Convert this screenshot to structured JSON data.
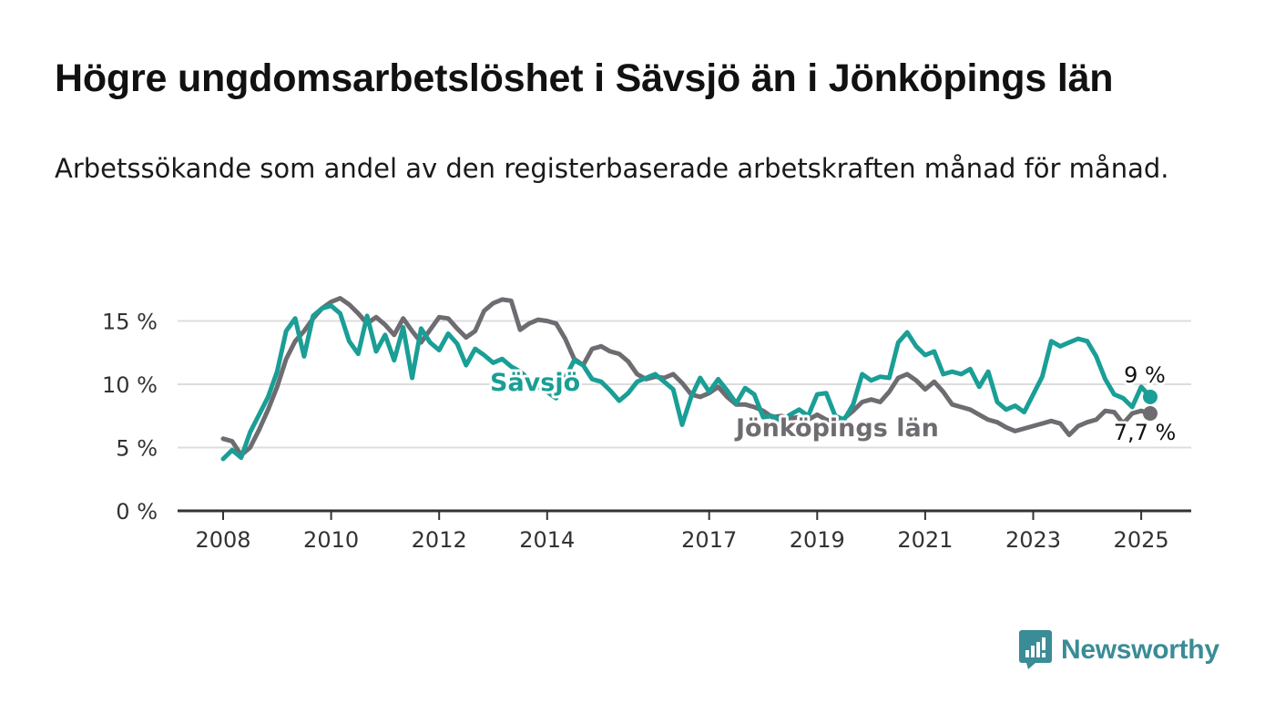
{
  "title": "Högre ungdomsarbetslöshet i Sävsjö än i Jönköpings län",
  "subtitle": "Arbetssökande som andel av den registerbaserade arbetskraften månad för månad.",
  "brand": "Newsworthy",
  "colors": {
    "savsjo": "#1a9e96",
    "jonkoping": "#6e6c70",
    "grid": "#dddddd",
    "axis": "#333333",
    "brand": "#3a8c96"
  },
  "chart_data": {
    "type": "line",
    "x_ticks": [
      "2008",
      "2010",
      "2012",
      "2014",
      "2017",
      "2019",
      "2021",
      "2023",
      "2025"
    ],
    "y_ticks": [
      "0 %",
      "5 %",
      "10 %",
      "15 %"
    ],
    "ylim": [
      0,
      17.5
    ],
    "xlim": [
      "2008-01",
      "2025-04"
    ],
    "grid": true,
    "series": [
      {
        "name": "Jönköpings län",
        "end_label": "7,7 %",
        "color": "#6e6c70",
        "values": [
          [
            "2008-01",
            5.7
          ],
          [
            "2008-03",
            5.5
          ],
          [
            "2008-05",
            4.4
          ],
          [
            "2008-07",
            5.0
          ],
          [
            "2008-09",
            6.4
          ],
          [
            "2008-11",
            8.0
          ],
          [
            "2009-01",
            9.8
          ],
          [
            "2009-03",
            12.0
          ],
          [
            "2009-05",
            13.4
          ],
          [
            "2009-07",
            14.2
          ],
          [
            "2009-09",
            15.2
          ],
          [
            "2009-11",
            16.0
          ],
          [
            "2010-01",
            16.5
          ],
          [
            "2010-03",
            16.8
          ],
          [
            "2010-05",
            16.3
          ],
          [
            "2010-07",
            15.6
          ],
          [
            "2010-09",
            14.8
          ],
          [
            "2010-11",
            15.3
          ],
          [
            "2011-01",
            14.7
          ],
          [
            "2011-03",
            13.9
          ],
          [
            "2011-05",
            15.2
          ],
          [
            "2011-07",
            14.2
          ],
          [
            "2011-09",
            13.3
          ],
          [
            "2011-11",
            14.3
          ],
          [
            "2012-01",
            15.3
          ],
          [
            "2012-03",
            15.2
          ],
          [
            "2012-05",
            14.4
          ],
          [
            "2012-07",
            13.7
          ],
          [
            "2012-09",
            14.2
          ],
          [
            "2012-11",
            15.8
          ],
          [
            "2013-01",
            16.4
          ],
          [
            "2013-03",
            16.7
          ],
          [
            "2013-05",
            16.6
          ],
          [
            "2013-07",
            14.3
          ],
          [
            "2013-09",
            14.8
          ],
          [
            "2013-11",
            15.1
          ],
          [
            "2014-01",
            15.0
          ],
          [
            "2014-03",
            14.8
          ],
          [
            "2014-05",
            13.6
          ],
          [
            "2014-07",
            12.0
          ],
          [
            "2014-09",
            11.5
          ],
          [
            "2014-11",
            12.8
          ],
          [
            "2015-01",
            13.0
          ],
          [
            "2015-03",
            12.6
          ],
          [
            "2015-05",
            12.4
          ],
          [
            "2015-07",
            11.8
          ],
          [
            "2015-09",
            10.8
          ],
          [
            "2015-11",
            10.4
          ],
          [
            "2016-01",
            10.6
          ],
          [
            "2016-03",
            10.5
          ],
          [
            "2016-05",
            10.8
          ],
          [
            "2016-07",
            10.1
          ],
          [
            "2016-09",
            9.2
          ],
          [
            "2016-11",
            9.0
          ],
          [
            "2017-01",
            9.3
          ],
          [
            "2017-03",
            9.8
          ],
          [
            "2017-05",
            9.0
          ],
          [
            "2017-07",
            8.4
          ],
          [
            "2017-09",
            8.4
          ],
          [
            "2017-11",
            8.2
          ],
          [
            "2018-01",
            7.9
          ],
          [
            "2018-03",
            7.4
          ],
          [
            "2018-05",
            7.5
          ],
          [
            "2018-07",
            7.3
          ],
          [
            "2018-09",
            7.4
          ],
          [
            "2018-11",
            7.2
          ],
          [
            "2019-01",
            7.6
          ],
          [
            "2019-03",
            7.2
          ],
          [
            "2019-05",
            7.0
          ],
          [
            "2019-07",
            7.3
          ],
          [
            "2019-09",
            7.9
          ],
          [
            "2019-11",
            8.6
          ],
          [
            "2020-01",
            8.8
          ],
          [
            "2020-03",
            8.6
          ],
          [
            "2020-05",
            9.4
          ],
          [
            "2020-07",
            10.5
          ],
          [
            "2020-09",
            10.8
          ],
          [
            "2020-11",
            10.3
          ],
          [
            "2021-01",
            9.6
          ],
          [
            "2021-03",
            10.2
          ],
          [
            "2021-05",
            9.4
          ],
          [
            "2021-07",
            8.4
          ],
          [
            "2021-09",
            8.2
          ],
          [
            "2021-11",
            8.0
          ],
          [
            "2022-01",
            7.6
          ],
          [
            "2022-03",
            7.2
          ],
          [
            "2022-05",
            7.0
          ],
          [
            "2022-07",
            6.6
          ],
          [
            "2022-09",
            6.3
          ],
          [
            "2022-11",
            6.5
          ],
          [
            "2023-01",
            6.7
          ],
          [
            "2023-03",
            6.9
          ],
          [
            "2023-05",
            7.1
          ],
          [
            "2023-07",
            6.9
          ],
          [
            "2023-09",
            6.0
          ],
          [
            "2023-11",
            6.7
          ],
          [
            "2024-01",
            7.0
          ],
          [
            "2024-03",
            7.2
          ],
          [
            "2024-05",
            7.9
          ],
          [
            "2024-07",
            7.8
          ],
          [
            "2024-09",
            6.9
          ],
          [
            "2024-11",
            7.7
          ],
          [
            "2025-01",
            7.9
          ],
          [
            "2025-03",
            7.7
          ]
        ]
      },
      {
        "name": "Sävsjö",
        "end_label": "9 %",
        "color": "#1a9e96",
        "values": [
          [
            "2008-01",
            4.1
          ],
          [
            "2008-03",
            4.8
          ],
          [
            "2008-05",
            4.2
          ],
          [
            "2008-07",
            6.2
          ],
          [
            "2008-09",
            7.6
          ],
          [
            "2008-11",
            9.0
          ],
          [
            "2009-01",
            11.0
          ],
          [
            "2009-03",
            14.2
          ],
          [
            "2009-05",
            15.2
          ],
          [
            "2009-07",
            12.2
          ],
          [
            "2009-09",
            15.4
          ],
          [
            "2009-11",
            16.0
          ],
          [
            "2010-01",
            16.2
          ],
          [
            "2010-03",
            15.6
          ],
          [
            "2010-05",
            13.4
          ],
          [
            "2010-07",
            12.4
          ],
          [
            "2010-09",
            15.4
          ],
          [
            "2010-11",
            12.6
          ],
          [
            "2011-01",
            13.9
          ],
          [
            "2011-03",
            11.9
          ],
          [
            "2011-05",
            14.5
          ],
          [
            "2011-07",
            10.5
          ],
          [
            "2011-09",
            14.4
          ],
          [
            "2011-11",
            13.3
          ],
          [
            "2012-01",
            12.7
          ],
          [
            "2012-03",
            14.0
          ],
          [
            "2012-05",
            13.2
          ],
          [
            "2012-07",
            11.5
          ],
          [
            "2012-09",
            12.8
          ],
          [
            "2012-11",
            12.3
          ],
          [
            "2013-01",
            11.7
          ],
          [
            "2013-03",
            12.0
          ],
          [
            "2013-05",
            11.4
          ],
          [
            "2013-07",
            11.0
          ],
          [
            "2013-09",
            10.4
          ],
          [
            "2013-11",
            9.8
          ],
          [
            "2014-01",
            9.4
          ],
          [
            "2014-03",
            8.9
          ],
          [
            "2014-05",
            10.5
          ],
          [
            "2014-07",
            11.9
          ],
          [
            "2014-09",
            11.5
          ],
          [
            "2014-11",
            10.4
          ],
          [
            "2015-01",
            10.2
          ],
          [
            "2015-03",
            9.5
          ],
          [
            "2015-05",
            8.7
          ],
          [
            "2015-07",
            9.3
          ],
          [
            "2015-09",
            10.2
          ],
          [
            "2015-11",
            10.5
          ],
          [
            "2016-01",
            10.8
          ],
          [
            "2016-03",
            10.2
          ],
          [
            "2016-05",
            9.6
          ],
          [
            "2016-07",
            6.8
          ],
          [
            "2016-09",
            9.0
          ],
          [
            "2016-11",
            10.5
          ],
          [
            "2017-01",
            9.4
          ],
          [
            "2017-03",
            10.4
          ],
          [
            "2017-05",
            9.5
          ],
          [
            "2017-07",
            8.5
          ],
          [
            "2017-09",
            9.7
          ],
          [
            "2017-11",
            9.2
          ],
          [
            "2018-01",
            7.4
          ],
          [
            "2018-03",
            7.5
          ],
          [
            "2018-05",
            7.1
          ],
          [
            "2018-07",
            7.6
          ],
          [
            "2018-09",
            8.0
          ],
          [
            "2018-11",
            7.5
          ],
          [
            "2019-01",
            9.2
          ],
          [
            "2019-03",
            9.3
          ],
          [
            "2019-05",
            7.5
          ],
          [
            "2019-07",
            7.2
          ],
          [
            "2019-09",
            8.4
          ],
          [
            "2019-11",
            10.8
          ],
          [
            "2020-01",
            10.3
          ],
          [
            "2020-03",
            10.6
          ],
          [
            "2020-05",
            10.5
          ],
          [
            "2020-07",
            13.3
          ],
          [
            "2020-09",
            14.1
          ],
          [
            "2020-11",
            13.0
          ],
          [
            "2021-01",
            12.3
          ],
          [
            "2021-03",
            12.6
          ],
          [
            "2021-05",
            10.8
          ],
          [
            "2021-07",
            11.0
          ],
          [
            "2021-09",
            10.8
          ],
          [
            "2021-11",
            11.2
          ],
          [
            "2022-01",
            9.8
          ],
          [
            "2022-03",
            11.0
          ],
          [
            "2022-05",
            8.6
          ],
          [
            "2022-07",
            8.0
          ],
          [
            "2022-09",
            8.3
          ],
          [
            "2022-11",
            7.8
          ],
          [
            "2023-01",
            9.2
          ],
          [
            "2023-03",
            10.6
          ],
          [
            "2023-05",
            13.4
          ],
          [
            "2023-07",
            13.0
          ],
          [
            "2023-09",
            13.3
          ],
          [
            "2023-11",
            13.6
          ],
          [
            "2024-01",
            13.4
          ],
          [
            "2024-03",
            12.2
          ],
          [
            "2024-05",
            10.4
          ],
          [
            "2024-07",
            9.2
          ],
          [
            "2024-09",
            8.9
          ],
          [
            "2024-11",
            8.2
          ],
          [
            "2025-01",
            9.8
          ],
          [
            "2025-03",
            9.0
          ]
        ]
      }
    ]
  }
}
